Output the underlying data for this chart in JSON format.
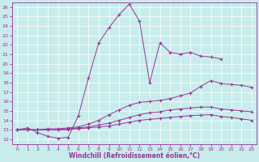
{
  "xlabel": "Windchill (Refroidissement éolien,°C)",
  "bg_color": "#c8ecec",
  "line_color": "#993399",
  "xlim": [
    -0.5,
    23.5
  ],
  "ylim": [
    11.5,
    26.5
  ],
  "xticks": [
    0,
    1,
    2,
    3,
    4,
    5,
    6,
    7,
    8,
    9,
    10,
    11,
    12,
    13,
    14,
    15,
    16,
    17,
    18,
    19,
    20,
    21,
    22,
    23
  ],
  "yticks": [
    12,
    13,
    14,
    15,
    16,
    17,
    18,
    19,
    20,
    21,
    22,
    23,
    24,
    25,
    26
  ],
  "curve1_x": [
    0,
    1,
    2,
    3,
    4,
    5,
    6,
    7,
    8,
    9,
    10,
    11,
    12,
    13,
    14,
    15,
    16,
    17,
    18,
    19,
    20
  ],
  "curve1_y": [
    13.0,
    13.2,
    12.7,
    12.3,
    12.1,
    12.2,
    14.5,
    18.5,
    22.2,
    23.8,
    25.2,
    26.3,
    24.5,
    18.0,
    22.2,
    21.2,
    21.0,
    21.2,
    20.8,
    20.7,
    20.5
  ],
  "curve2_x": [
    0,
    1,
    2,
    3,
    4,
    5,
    6,
    7,
    8,
    9,
    10,
    11,
    12,
    13,
    14,
    15,
    16,
    17,
    18,
    19,
    20,
    21,
    22,
    23
  ],
  "curve2_y": [
    13.0,
    13.0,
    13.0,
    13.1,
    13.1,
    13.2,
    13.3,
    13.6,
    14.0,
    14.6,
    15.1,
    15.6,
    15.9,
    16.0,
    16.1,
    16.3,
    16.6,
    16.9,
    17.6,
    18.2,
    17.9,
    17.8,
    17.7,
    17.5
  ],
  "curve3_x": [
    0,
    1,
    2,
    3,
    4,
    5,
    6,
    7,
    8,
    9,
    10,
    11,
    12,
    13,
    14,
    15,
    16,
    17,
    18,
    19,
    20,
    21,
    22,
    23
  ],
  "curve3_y": [
    13.0,
    13.0,
    13.0,
    13.0,
    13.0,
    13.1,
    13.2,
    13.3,
    13.5,
    13.7,
    14.0,
    14.3,
    14.6,
    14.8,
    14.9,
    15.1,
    15.2,
    15.3,
    15.4,
    15.4,
    15.2,
    15.1,
    15.0,
    14.9
  ],
  "curve4_x": [
    0,
    1,
    2,
    3,
    4,
    5,
    6,
    7,
    8,
    9,
    10,
    11,
    12,
    13,
    14,
    15,
    16,
    17,
    18,
    19,
    20,
    21,
    22,
    23
  ],
  "curve4_y": [
    13.0,
    13.0,
    13.0,
    13.0,
    13.0,
    13.0,
    13.1,
    13.2,
    13.3,
    13.4,
    13.6,
    13.8,
    14.0,
    14.1,
    14.2,
    14.3,
    14.4,
    14.5,
    14.55,
    14.6,
    14.4,
    14.3,
    14.15,
    14.0
  ]
}
